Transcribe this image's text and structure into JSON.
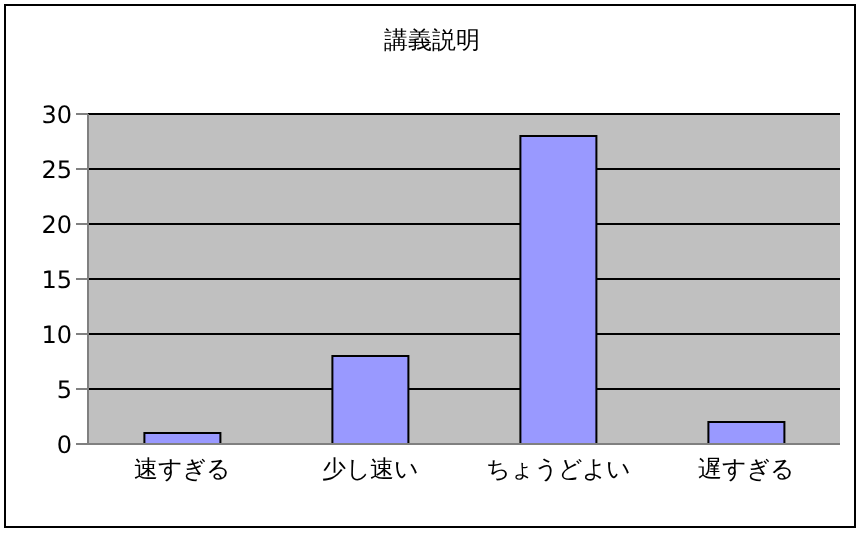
{
  "chart_data": {
    "type": "bar",
    "title": "講義説明",
    "categories": [
      "速すぎる",
      "少し速い",
      "ちょうどよい",
      "遅すぎる"
    ],
    "values": [
      1,
      8,
      28,
      2
    ],
    "color": "#9999ff",
    "ylim": [
      0,
      30
    ],
    "yticks": [
      0,
      5,
      10,
      15,
      20,
      25,
      30
    ],
    "grid": "y"
  }
}
